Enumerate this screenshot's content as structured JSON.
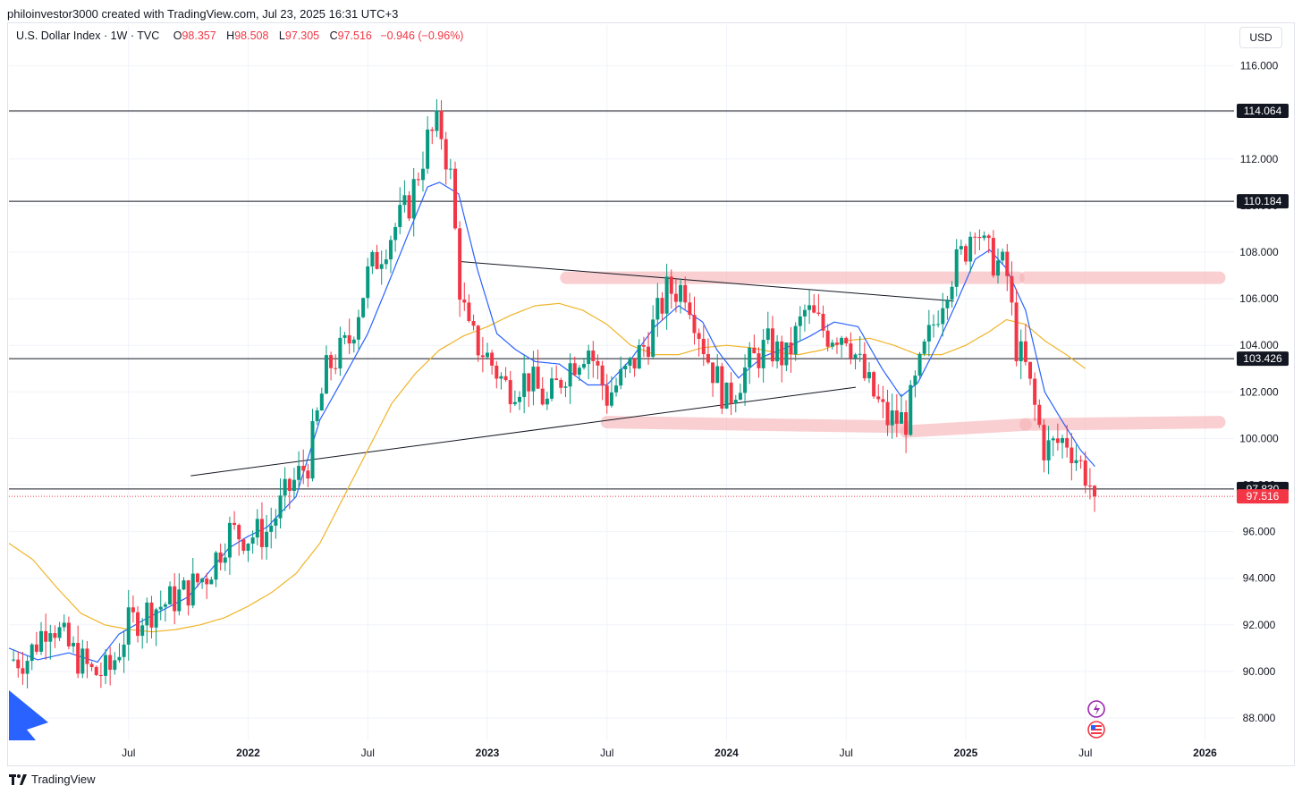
{
  "attribution": "philoinvestor3000 created with TradingView.com, Jul 23, 2025 16:31 UTC+3",
  "legend": {
    "title": "U.S. Dollar Index · 1W · TVC",
    "o_label": "O",
    "o_value": "98.357",
    "h_label": "H",
    "h_value": "98.508",
    "l_label": "L",
    "l_value": "97.305",
    "c_label": "C",
    "c_value": "97.516",
    "change": "−0.946 (−0.96%)"
  },
  "currency_button": "USD",
  "footer": {
    "brand": "TradingView",
    "logo_icon": "tradingview-logo-icon"
  },
  "colors": {
    "up": "#089981",
    "down": "#f23645",
    "ema_fast": "#2962ff",
    "ma_slow": "#f0b429",
    "zone": "#f7b6bb",
    "level": "#131722"
  },
  "chart_data": {
    "type": "candlestick",
    "symbol": "U.S. Dollar Index",
    "interval": "1W",
    "source": "TVC",
    "y_axis": {
      "range": [
        86.5,
        117.5
      ],
      "ticks": [
        "88.000",
        "90.000",
        "92.000",
        "94.000",
        "96.000",
        "98.000",
        "100.000",
        "102.000",
        "104.000",
        "106.000",
        "108.000",
        "110.000",
        "112.000",
        "114.000",
        "116.000"
      ]
    },
    "x_axis": {
      "ticks": [
        {
          "label": "Jul",
          "t": 2021.5,
          "bold": false
        },
        {
          "label": "2022",
          "t": 2022.0,
          "bold": true
        },
        {
          "label": "Jul",
          "t": 2022.5,
          "bold": false
        },
        {
          "label": "2023",
          "t": 2023.0,
          "bold": true
        },
        {
          "label": "Jul",
          "t": 2023.5,
          "bold": false
        },
        {
          "label": "2024",
          "t": 2024.0,
          "bold": true
        },
        {
          "label": "Jul",
          "t": 2024.5,
          "bold": false
        },
        {
          "label": "2025",
          "t": 2025.0,
          "bold": true
        },
        {
          "label": "Jul",
          "t": 2025.5,
          "bold": false
        },
        {
          "label": "2026",
          "t": 2026.0,
          "bold": true
        }
      ]
    },
    "horizontal_levels": [
      {
        "value": 114.064,
        "label": "114.064"
      },
      {
        "value": 110.184,
        "label": "110.184"
      },
      {
        "value": 103.426,
        "label": "103.426"
      },
      {
        "value": 97.83,
        "label": "97.830"
      }
    ],
    "last_price": {
      "value": 97.516,
      "label": "97.516"
    },
    "trendlines": [
      {
        "from": [
          2021.76,
          98.4
        ],
        "to": [
          2024.54,
          102.2
        ]
      },
      {
        "from": [
          2022.88,
          107.6
        ],
        "to": [
          2024.95,
          105.9
        ]
      }
    ],
    "zones": [
      {
        "from": [
          2023.33,
          106.9
        ],
        "to": [
          2025.22,
          106.9
        ]
      },
      {
        "from": [
          2025.25,
          106.9
        ],
        "to": [
          2026.06,
          106.9
        ]
      },
      {
        "from": [
          2023.5,
          100.7
        ],
        "to": [
          2024.75,
          100.5
        ]
      },
      {
        "from": [
          2024.75,
          100.3
        ],
        "to": [
          2025.25,
          100.6
        ]
      },
      {
        "from": [
          2025.25,
          100.6
        ],
        "to": [
          2026.06,
          100.7
        ]
      }
    ],
    "path_ohlc_anchors": [
      [
        2021.0,
        90.5
      ],
      [
        2021.08,
        90.6
      ],
      [
        2021.17,
        92.3
      ],
      [
        2021.25,
        91.0
      ],
      [
        2021.35,
        89.9
      ],
      [
        2021.42,
        90.0
      ],
      [
        2021.5,
        92.0
      ],
      [
        2021.58,
        92.6
      ],
      [
        2021.67,
        93.0
      ],
      [
        2021.75,
        93.5
      ],
      [
        2021.83,
        94.2
      ],
      [
        2021.92,
        96.0
      ],
      [
        2022.0,
        95.8
      ],
      [
        2022.08,
        96.0
      ],
      [
        2022.17,
        97.8
      ],
      [
        2022.25,
        99.0
      ],
      [
        2022.33,
        103.0
      ],
      [
        2022.42,
        104.1
      ],
      [
        2022.5,
        107.0
      ],
      [
        2022.58,
        108.5
      ],
      [
        2022.67,
        110.0
      ],
      [
        2022.75,
        112.8
      ],
      [
        2022.8,
        113.5
      ],
      [
        2022.85,
        111.0
      ],
      [
        2022.88,
        106.8
      ],
      [
        2022.92,
        104.5
      ],
      [
        2023.0,
        103.5
      ],
      [
        2023.08,
        102.2
      ],
      [
        2023.17,
        102.6
      ],
      [
        2023.25,
        101.5
      ],
      [
        2023.33,
        103.0
      ],
      [
        2023.42,
        104.0
      ],
      [
        2023.5,
        101.8
      ],
      [
        2023.58,
        102.8
      ],
      [
        2023.67,
        104.2
      ],
      [
        2023.75,
        106.3
      ],
      [
        2023.83,
        106.5
      ],
      [
        2023.92,
        103.5
      ],
      [
        2024.0,
        101.6
      ],
      [
        2024.08,
        103.0
      ],
      [
        2024.17,
        104.0
      ],
      [
        2024.25,
        103.4
      ],
      [
        2024.33,
        105.5
      ],
      [
        2024.42,
        104.5
      ],
      [
        2024.5,
        104.6
      ],
      [
        2024.58,
        102.5
      ],
      [
        2024.67,
        100.8
      ],
      [
        2024.75,
        100.8
      ],
      [
        2024.83,
        103.8
      ],
      [
        2024.92,
        106.7
      ],
      [
        2025.0,
        108.2
      ],
      [
        2025.04,
        109.5
      ],
      [
        2025.08,
        108.0
      ],
      [
        2025.17,
        107.2
      ],
      [
        2025.21,
        104.0
      ],
      [
        2025.25,
        103.0
      ],
      [
        2025.33,
        99.5
      ],
      [
        2025.42,
        100.0
      ],
      [
        2025.5,
        98.5
      ],
      [
        2025.54,
        97.5
      ]
    ],
    "ema_fast_anchors": [
      [
        2021.0,
        91.0
      ],
      [
        2021.12,
        90.5
      ],
      [
        2021.25,
        90.8
      ],
      [
        2021.37,
        90.4
      ],
      [
        2021.46,
        91.6
      ],
      [
        2021.58,
        92.3
      ],
      [
        2021.75,
        93.2
      ],
      [
        2021.92,
        95.3
      ],
      [
        2022.0,
        95.8
      ],
      [
        2022.08,
        96.2
      ],
      [
        2022.2,
        97.5
      ],
      [
        2022.3,
        100.8
      ],
      [
        2022.42,
        103.0
      ],
      [
        2022.5,
        104.5
      ],
      [
        2022.58,
        106.5
      ],
      [
        2022.67,
        108.8
      ],
      [
        2022.75,
        110.8
      ],
      [
        2022.8,
        111.0
      ],
      [
        2022.88,
        110.5
      ],
      [
        2022.96,
        107.2
      ],
      [
        2023.04,
        104.5
      ],
      [
        2023.12,
        103.8
      ],
      [
        2023.2,
        103.3
      ],
      [
        2023.3,
        103.2
      ],
      [
        2023.42,
        102.3
      ],
      [
        2023.5,
        102.3
      ],
      [
        2023.6,
        103.4
      ],
      [
        2023.7,
        104.8
      ],
      [
        2023.8,
        105.7
      ],
      [
        2023.9,
        105.0
      ],
      [
        2023.96,
        103.8
      ],
      [
        2024.05,
        102.6
      ],
      [
        2024.15,
        103.5
      ],
      [
        2024.25,
        103.9
      ],
      [
        2024.35,
        104.4
      ],
      [
        2024.45,
        105.0
      ],
      [
        2024.55,
        104.8
      ],
      [
        2024.65,
        103.0
      ],
      [
        2024.73,
        101.8
      ],
      [
        2024.8,
        102.4
      ],
      [
        2024.88,
        104.0
      ],
      [
        2024.96,
        105.8
      ],
      [
        2025.04,
        107.7
      ],
      [
        2025.1,
        108.1
      ],
      [
        2025.17,
        107.3
      ],
      [
        2025.25,
        105.5
      ],
      [
        2025.33,
        102.0
      ],
      [
        2025.4,
        100.8
      ],
      [
        2025.48,
        99.5
      ],
      [
        2025.54,
        98.8
      ]
    ],
    "ma_slow_anchors": [
      [
        2021.0,
        95.5
      ],
      [
        2021.1,
        94.8
      ],
      [
        2021.2,
        93.6
      ],
      [
        2021.3,
        92.5
      ],
      [
        2021.4,
        92.0
      ],
      [
        2021.5,
        91.8
      ],
      [
        2021.6,
        91.7
      ],
      [
        2021.7,
        91.8
      ],
      [
        2021.8,
        92.0
      ],
      [
        2021.9,
        92.3
      ],
      [
        2022.0,
        92.8
      ],
      [
        2022.1,
        93.4
      ],
      [
        2022.2,
        94.2
      ],
      [
        2022.3,
        95.5
      ],
      [
        2022.4,
        97.5
      ],
      [
        2022.5,
        99.5
      ],
      [
        2022.6,
        101.5
      ],
      [
        2022.7,
        102.8
      ],
      [
        2022.8,
        103.8
      ],
      [
        2022.9,
        104.4
      ],
      [
        2023.0,
        104.8
      ],
      [
        2023.1,
        105.3
      ],
      [
        2023.2,
        105.7
      ],
      [
        2023.3,
        105.8
      ],
      [
        2023.4,
        105.5
      ],
      [
        2023.5,
        104.9
      ],
      [
        2023.6,
        104.0
      ],
      [
        2023.7,
        103.6
      ],
      [
        2023.8,
        103.6
      ],
      [
        2023.9,
        103.9
      ],
      [
        2024.0,
        104.0
      ],
      [
        2024.1,
        103.9
      ],
      [
        2024.2,
        103.7
      ],
      [
        2024.3,
        103.6
      ],
      [
        2024.4,
        103.8
      ],
      [
        2024.5,
        104.2
      ],
      [
        2024.6,
        104.3
      ],
      [
        2024.7,
        104.0
      ],
      [
        2024.8,
        103.6
      ],
      [
        2024.9,
        103.6
      ],
      [
        2025.0,
        104.0
      ],
      [
        2025.1,
        104.6
      ],
      [
        2025.17,
        105.1
      ],
      [
        2025.25,
        104.9
      ],
      [
        2025.33,
        104.2
      ],
      [
        2025.42,
        103.6
      ],
      [
        2025.5,
        103.0
      ]
    ]
  }
}
